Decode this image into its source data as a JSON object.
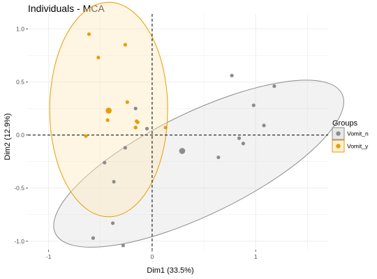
{
  "chart_data": {
    "type": "scatter",
    "title": "Individuals - MCA",
    "xlabel": "Dim1 (33.5%)",
    "ylabel": "Dim2 (12.9%)",
    "xlim": [
      -1.2,
      1.7
    ],
    "ylim": [
      -1.08,
      1.14
    ],
    "x_ticks": [
      -1,
      0,
      1
    ],
    "x_tick_labels": [
      "-1",
      "0",
      "1"
    ],
    "y_ticks": [
      1.0,
      0.5,
      0.0,
      -0.5,
      -1.0
    ],
    "y_tick_labels": [
      "1.0",
      "0.5",
      "0.0",
      "-0.5",
      "-1.0"
    ],
    "grid": true,
    "reference_lines": {
      "x": 0,
      "y": 0,
      "style": "dashed"
    },
    "legend": {
      "title": "Groups",
      "placement": "right",
      "entries": [
        "Vomit_n",
        "Vomit_y"
      ]
    },
    "series": [
      {
        "name": "Vomit_n",
        "color": "#8c8c8c",
        "fill": "#d9d9d9",
        "points": [
          {
            "x": 0.77,
            "y": 0.56
          },
          {
            "x": 1.18,
            "y": 0.46
          },
          {
            "x": 0.98,
            "y": 0.28
          },
          {
            "x": 1.08,
            "y": 0.09
          },
          {
            "x": -0.16,
            "y": 0.25
          },
          {
            "x": -0.16,
            "y": 0.07
          },
          {
            "x": -0.05,
            "y": 0.06
          },
          {
            "x": 0.84,
            "y": -0.03
          },
          {
            "x": 0.88,
            "y": -0.08
          },
          {
            "x": -0.26,
            "y": -0.12
          },
          {
            "x": 0.64,
            "y": -0.21
          },
          {
            "x": -0.46,
            "y": -0.26
          },
          {
            "x": -0.37,
            "y": -0.44
          },
          {
            "x": -0.38,
            "y": -0.83
          },
          {
            "x": -0.57,
            "y": -0.97
          },
          {
            "x": -0.28,
            "y": -1.04
          }
        ],
        "centroid": {
          "x": 0.29,
          "y": -0.15
        },
        "ellipse": {
          "cx": 0.45,
          "cy": -0.27,
          "rx": 1.54,
          "ry": 0.48,
          "angle_deg": -26
        }
      },
      {
        "name": "Vomit_y",
        "color": "#e69f00",
        "fill": "#fce9c2",
        "points": [
          {
            "x": -0.61,
            "y": 0.95
          },
          {
            "x": -0.26,
            "y": 0.85
          },
          {
            "x": -0.52,
            "y": 0.73
          },
          {
            "x": -0.24,
            "y": 0.31
          },
          {
            "x": -0.43,
            "y": 0.14
          },
          {
            "x": -0.15,
            "y": 0.13
          },
          {
            "x": -0.14,
            "y": 0.12
          },
          {
            "x": -0.16,
            "y": 0.07
          },
          {
            "x": 0.13,
            "y": 0.07
          },
          {
            "x": -0.64,
            "y": -0.01
          }
        ],
        "centroid": {
          "x": -0.42,
          "y": 0.23
        },
        "ellipse": {
          "cx": -0.42,
          "cy": 0.24,
          "rx": 0.57,
          "ry": 1.01,
          "angle_deg": 0
        }
      }
    ]
  }
}
